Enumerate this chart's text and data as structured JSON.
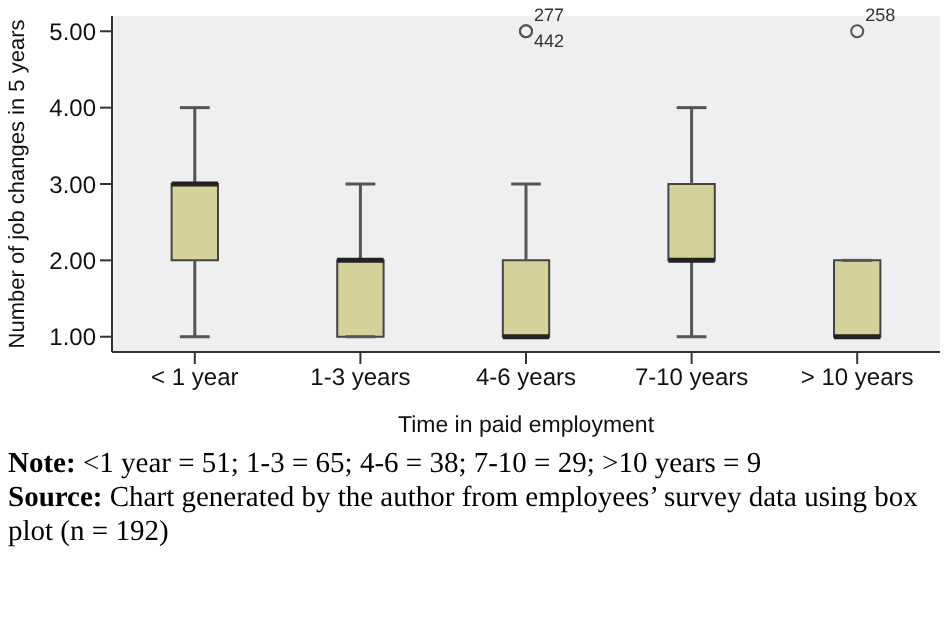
{
  "chart_data": {
    "type": "box",
    "xlabel": "Time in paid employment",
    "ylabel": "Number of job changes in 5 years",
    "categories": [
      "< 1 year",
      "1-3 years",
      "4-6 years",
      "7-10 years",
      "> 10 years"
    ],
    "boxes": [
      {
        "low": 1,
        "q1": 2,
        "median": 3,
        "q3": 3,
        "high": 4
      },
      {
        "low": 1,
        "q1": 1,
        "median": 2,
        "q3": 2,
        "high": 3
      },
      {
        "low": 1,
        "q1": 1,
        "median": 1,
        "q3": 2,
        "high": 3,
        "outliers": [
          5,
          5
        ]
      },
      {
        "low": 1,
        "q1": 2,
        "median": 2,
        "q3": 3,
        "high": 4
      },
      {
        "low": 1,
        "q1": 1,
        "median": 1,
        "q3": 2,
        "high": 2,
        "outliers": [
          5
        ]
      }
    ],
    "color": "#d6d09a",
    "ylim": [
      0.8,
      5.2
    ],
    "yticks": [
      {
        "value": 1,
        "label": "1.00"
      },
      {
        "value": 2,
        "label": "2.00"
      },
      {
        "value": 3,
        "label": "3.00"
      },
      {
        "value": 4,
        "label": "4.00"
      },
      {
        "value": 5,
        "label": "5.00"
      }
    ],
    "grid": false,
    "annotations": [
      "277",
      "442",
      "258",
      "Note: <1 year = 51; 1-3 = 65; 4-6 = 38; 7-10 = 29; >10 years = 9",
      "Source: Chart generated by the author from employees’ survey data using box plot (n = 192)"
    ]
  }
}
